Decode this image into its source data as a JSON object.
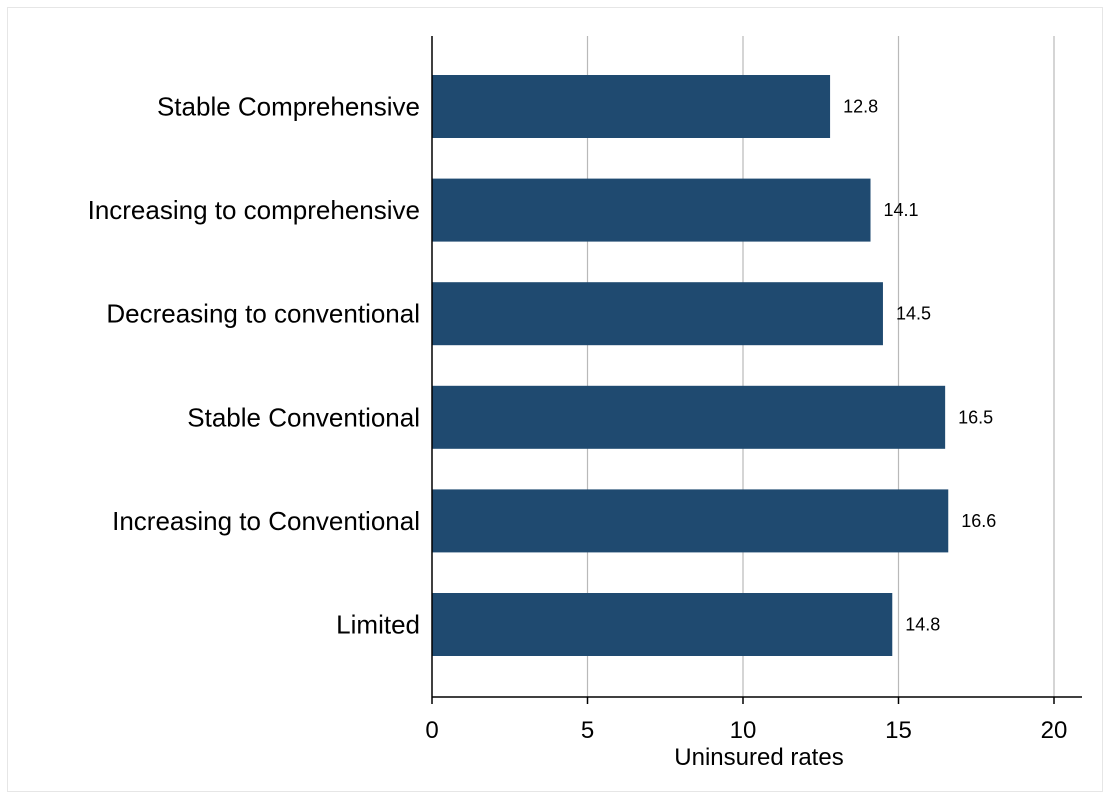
{
  "chart_data": {
    "type": "bar",
    "orientation": "horizontal",
    "categories": [
      "Stable Comprehensive",
      "Increasing to comprehensive",
      "Decreasing to conventional",
      "Stable Conventional",
      "Increasing to Conventional",
      "Limited"
    ],
    "values": [
      12.8,
      14.1,
      14.5,
      16.5,
      16.6,
      14.8
    ],
    "data_labels": [
      "12.8",
      "14.1",
      "14.5",
      "16.5",
      "16.6",
      "14.8"
    ],
    "xlabel": "Uninsured rates",
    "ylabel": "",
    "xlim": [
      0,
      20
    ],
    "xticks": [
      0,
      5,
      10,
      15,
      20
    ],
    "xtick_labels": [
      "0",
      "5",
      "10",
      "15",
      "20"
    ],
    "grid": "vertical",
    "legend": "none",
    "bar_color": "#1f4a70"
  }
}
